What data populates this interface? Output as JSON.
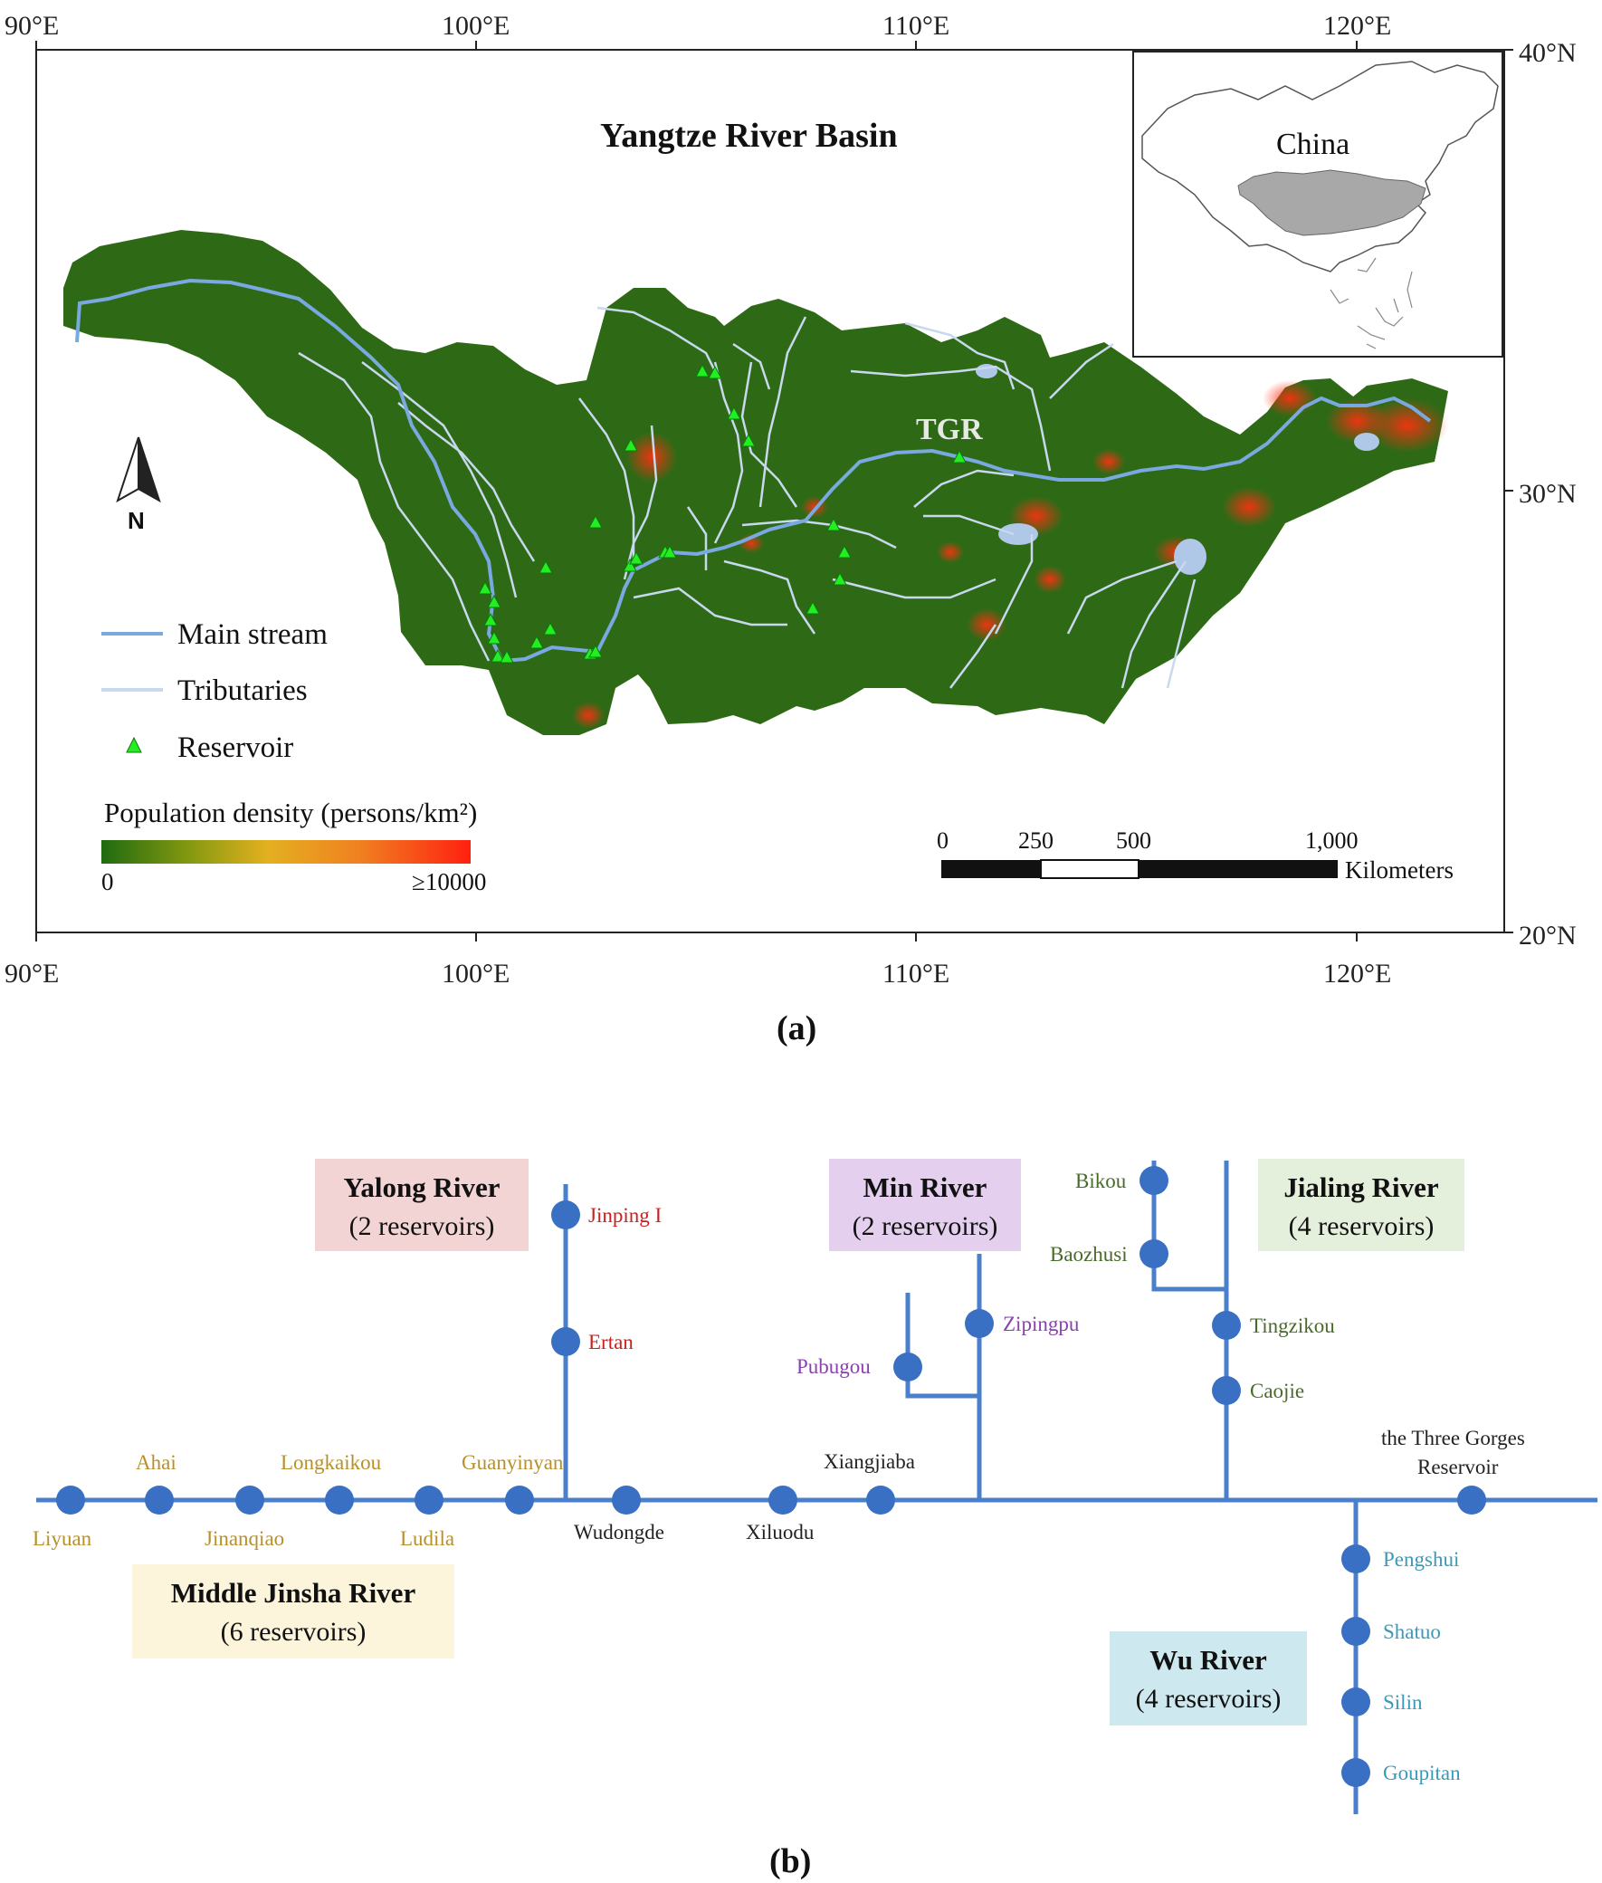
{
  "panel_a": {
    "label": "(a)",
    "title": "Yangtze River Basin",
    "top_lon_labels": [
      "90°E",
      "100°E",
      "110°E",
      "120°E"
    ],
    "bottom_lon_labels": [
      "90°E",
      "100°E",
      "110°E",
      "120°E"
    ],
    "lat_labels": [
      "40°N",
      "30°N",
      "20°N"
    ],
    "inset_label": "China",
    "tgr_label": "TGR",
    "north_label": "N",
    "legend": {
      "main_stream": "Main stream",
      "tributaries": "Tributaries",
      "reservoir": "Reservoir"
    },
    "population": {
      "title": "Population density  (persons/km²)",
      "min_label": "0",
      "max_label": "≥10000",
      "colors": [
        "#1f6b10",
        "#8a9a10",
        "#e3b020",
        "#f08020",
        "#ff2010"
      ]
    },
    "scale_bar": {
      "ticks": [
        "0",
        "250",
        "500",
        "1,000"
      ],
      "unit": "Kilometers"
    },
    "colors": {
      "basin": "#2e6a16",
      "main_stream": "#7aa8e0",
      "tributary": "#c8d8ee",
      "reservoir": "#22ee22",
      "inset_fill": "#a8a8a8"
    }
  },
  "panel_b": {
    "label": "(b)",
    "groups": {
      "middle_jinsha": {
        "title": "Middle Jinsha River",
        "count": "(6 reservoirs)",
        "color": "#fdf4dc"
      },
      "yalong": {
        "title": "Yalong River",
        "count": "(2 reservoirs)",
        "color": "#f3d4d4"
      },
      "min": {
        "title": "Min River",
        "count": "(2 reservoirs)",
        "color": "#e4d0ee"
      },
      "jialing": {
        "title": "Jialing River",
        "count": "(4 reservoirs)",
        "color": "#e4f0dc"
      },
      "wu": {
        "title": "Wu River",
        "count": "(4 reservoirs)",
        "color": "#cde8ee"
      }
    },
    "reservoirs": {
      "liyuan": "Liyuan",
      "ahai": "Ahai",
      "jinanqiao": "Jinanqiao",
      "longkaikou": "Longkaikou",
      "ludila": "Ludila",
      "guanyinyan": "Guanyinyan",
      "wudongde": "Wudongde",
      "xiluodu": "Xiluodu",
      "xiangjiaba": "Xiangjiaba",
      "three_gorges_1": "the Three Gorges",
      "three_gorges_2": "Reservoir",
      "jinping": "Jinping I",
      "ertan": "Ertan",
      "zipingpu": "Zipingpu",
      "pubugou": "Pubugou",
      "bikou": "Bikou",
      "baozhusi": "Baozhusi",
      "tingzikou": "Tingzikou",
      "caojie": "Caojie",
      "pengshui": "Pengshui",
      "shatuo": "Shatuo",
      "silin": "Silin",
      "goupitan": "Goupitan"
    },
    "colors": {
      "line": "#4a7fcc",
      "node": "#3a70c4",
      "jinsha_text": "#b8902a",
      "yalong_text": "#cc2020",
      "min_text": "#8a40b0",
      "jialing_text": "#4a6a2a",
      "wu_text": "#3a9ab8",
      "main_text": "#222222"
    }
  }
}
